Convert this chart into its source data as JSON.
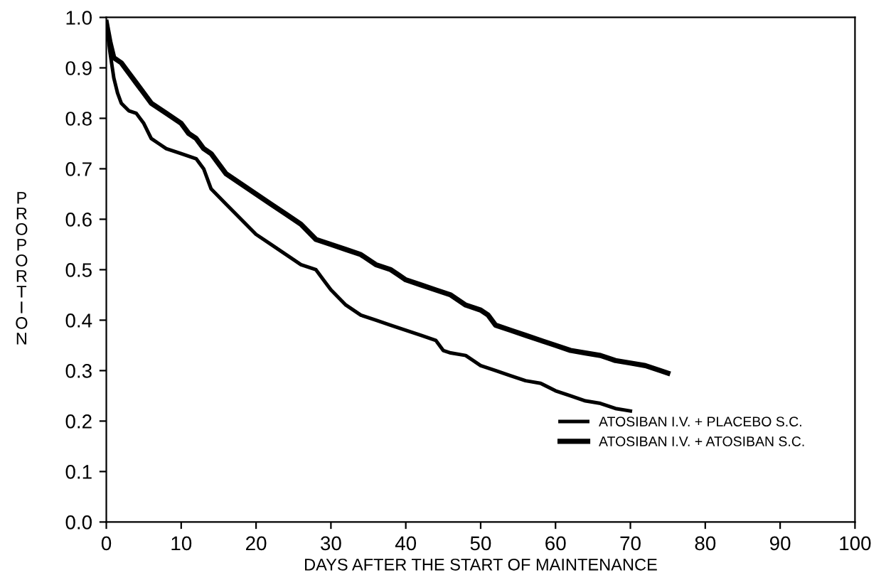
{
  "chart_data": {
    "type": "line",
    "xlabel": "DAYS AFTER THE START OF MAINTENANCE",
    "ylabel": "P\nR\nO\nP\nO\nR\nT\nI\nO\nN",
    "xlim": [
      0,
      100
    ],
    "xticks": [
      0,
      10,
      20,
      30,
      40,
      50,
      60,
      70,
      80,
      90,
      100
    ],
    "ylim": [
      0,
      1.0
    ],
    "yticks": [
      {
        "value": 0,
        "label": "0.0"
      },
      0.1,
      0.2,
      0.3,
      0.4,
      0.5,
      0.6,
      0.7,
      0.8,
      0.9,
      {
        "value": 1,
        "label": "1.0"
      }
    ],
    "grid": false,
    "legend": "bottom right",
    "marker": "none",
    "line_style": "solid",
    "series": [
      {
        "name": "ATOSIBAN I.V. + PLACEBO S.C.",
        "color": "#000000",
        "x": [
          0,
          0.5,
          1,
          1.5,
          2,
          3,
          4,
          5,
          6,
          7,
          8,
          10,
          12,
          13,
          14,
          16,
          18,
          20,
          22,
          24,
          26,
          28,
          29,
          30,
          32,
          34,
          36,
          38,
          40,
          42,
          44,
          45,
          46,
          48,
          50,
          52,
          54,
          56,
          58,
          60,
          62,
          64,
          66,
          68,
          70
        ],
        "values": [
          0.99,
          0.93,
          0.88,
          0.85,
          0.83,
          0.815,
          0.81,
          0.79,
          0.76,
          0.75,
          0.74,
          0.73,
          0.72,
          0.7,
          0.66,
          0.63,
          0.6,
          0.57,
          0.55,
          0.53,
          0.51,
          0.5,
          0.48,
          0.46,
          0.43,
          0.41,
          0.4,
          0.39,
          0.38,
          0.37,
          0.36,
          0.34,
          0.335,
          0.33,
          0.31,
          0.3,
          0.29,
          0.28,
          0.275,
          0.26,
          0.25,
          0.24,
          0.235,
          0.225,
          0.22
        ]
      },
      {
        "name": "ATOSIBAN I.V. + ATOSIBAN S.C.",
        "color": "#000000",
        "x": [
          0,
          0.5,
          1,
          2,
          3,
          4,
          5,
          6,
          8,
          10,
          11,
          12,
          13,
          14,
          15,
          16,
          18,
          20,
          22,
          24,
          26,
          28,
          30,
          32,
          34,
          36,
          38,
          39,
          40,
          42,
          44,
          46,
          48,
          50,
          51,
          52,
          54,
          56,
          58,
          60,
          62,
          64,
          66,
          68,
          70,
          72,
          74,
          75
        ],
        "values": [
          0.99,
          0.95,
          0.92,
          0.91,
          0.89,
          0.87,
          0.85,
          0.83,
          0.81,
          0.79,
          0.77,
          0.76,
          0.74,
          0.73,
          0.71,
          0.69,
          0.67,
          0.65,
          0.63,
          0.61,
          0.59,
          0.56,
          0.55,
          0.54,
          0.53,
          0.51,
          0.5,
          0.49,
          0.48,
          0.47,
          0.46,
          0.45,
          0.43,
          0.42,
          0.41,
          0.39,
          0.38,
          0.37,
          0.36,
          0.35,
          0.34,
          0.335,
          0.33,
          0.32,
          0.315,
          0.31,
          0.3,
          0.295
        ]
      }
    ]
  }
}
